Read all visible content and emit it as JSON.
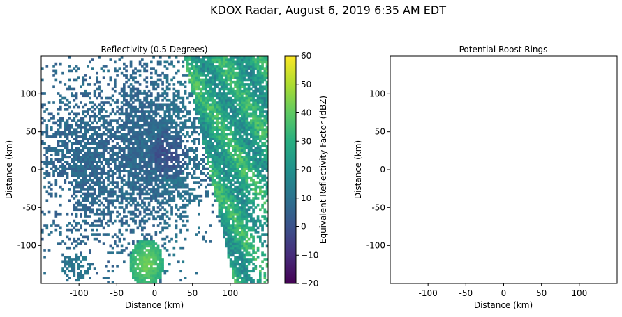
{
  "figure": {
    "suptitle": "KDOX Radar, August 6, 2019 6:35 AM EDT"
  },
  "chart_data": [
    {
      "type": "heatmap",
      "title": "Reflectivity (0.5 Degrees)",
      "xlabel": "Distance (km)",
      "ylabel": "Distance (km)",
      "xlim": [
        -150,
        150
      ],
      "ylim": [
        -150,
        150
      ],
      "xticks": [
        -100,
        -50,
        0,
        50,
        100
      ],
      "xtick_labels": [
        "-100",
        "-50",
        "0",
        "50",
        "100"
      ],
      "yticks": [
        -100,
        -50,
        0,
        50,
        100
      ],
      "ytick_labels": [
        "-100",
        "-50",
        "0",
        "50",
        "100"
      ],
      "colormap": "viridis",
      "colorbar": {
        "label": "Equivalent Reflectivity Factor (dBZ)",
        "vmin": -20,
        "vmax": 60,
        "ticks": [
          -20,
          -10,
          0,
          10,
          20,
          30,
          40,
          50,
          60
        ],
        "tick_labels": [
          "−20",
          "−10",
          "0",
          "10",
          "20",
          "30",
          "40",
          "50",
          "60"
        ]
      },
      "field_features": [
        {
          "name": "broad clear-air echo",
          "x_range": [
            -150,
            70
          ],
          "y_range": [
            -110,
            120
          ],
          "dbz": 10
        },
        {
          "name": "low-reflectivity core",
          "x_range": [
            -20,
            60
          ],
          "y_range": [
            -30,
            50
          ],
          "dbz": 0
        },
        {
          "name": "eastern convective band",
          "x_range": [
            60,
            150
          ],
          "y_range": [
            -150,
            140
          ],
          "dbz": 28
        },
        {
          "name": "southern cell",
          "x_range": [
            -35,
            15
          ],
          "y_range": [
            -150,
            -90
          ],
          "dbz": 35
        }
      ]
    },
    {
      "type": "scatter",
      "title": "Potential Roost Rings",
      "xlabel": "Distance (km)",
      "ylabel": "Distance (km)",
      "xlim": [
        -150,
        150
      ],
      "ylim": [
        -150,
        150
      ],
      "xticks": [
        -100,
        -50,
        0,
        50,
        100
      ],
      "xtick_labels": [
        "-100",
        "-50",
        "0",
        "50",
        "100"
      ],
      "yticks": [
        -100,
        -50,
        0,
        50,
        100
      ],
      "ytick_labels": [
        "-100",
        "-50",
        "0",
        "50",
        "100"
      ],
      "points": []
    }
  ]
}
